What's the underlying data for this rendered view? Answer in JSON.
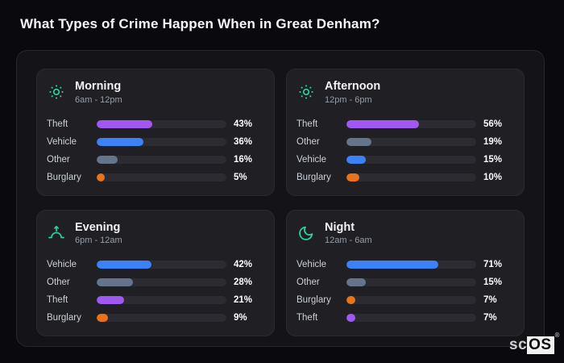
{
  "title": "What Types of Crime Happen When in Great Denham?",
  "logo": {
    "prefix": "sc",
    "boxed": "OS",
    "registered": "®"
  },
  "colors": {
    "page_bg": "#0a0a0e",
    "container_bg": "#131318",
    "panel_bg": "#1f1f24",
    "bar_track": "#2b2b31",
    "accent_teal": "#2dd4a0",
    "crime": {
      "Theft": "#a158f0",
      "Vehicle": "#3b82f6",
      "Other": "#64748b",
      "Burglary": "#e8731a"
    }
  },
  "chart_data": [
    {
      "type": "bar",
      "orientation": "horizontal",
      "title": "Morning",
      "subtitle": "6am - 12pm",
      "icon": "sun-icon",
      "categories": [
        "Theft",
        "Vehicle",
        "Other",
        "Burglary"
      ],
      "values": [
        43,
        36,
        16,
        5
      ],
      "unit": "%",
      "xlim": [
        0,
        100
      ],
      "grid": false,
      "legend": "none"
    },
    {
      "type": "bar",
      "orientation": "horizontal",
      "title": "Afternoon",
      "subtitle": "12pm - 6pm",
      "icon": "sun-icon",
      "categories": [
        "Theft",
        "Other",
        "Vehicle",
        "Burglary"
      ],
      "values": [
        56,
        19,
        15,
        10
      ],
      "unit": "%",
      "xlim": [
        0,
        100
      ],
      "grid": false,
      "legend": "none"
    },
    {
      "type": "bar",
      "orientation": "horizontal",
      "title": "Evening",
      "subtitle": "6pm - 12am",
      "icon": "sunset-icon",
      "categories": [
        "Vehicle",
        "Other",
        "Theft",
        "Burglary"
      ],
      "values": [
        42,
        28,
        21,
        9
      ],
      "unit": "%",
      "xlim": [
        0,
        100
      ],
      "grid": false,
      "legend": "none"
    },
    {
      "type": "bar",
      "orientation": "horizontal",
      "title": "Night",
      "subtitle": "12am - 6am",
      "icon": "moon-icon",
      "categories": [
        "Vehicle",
        "Other",
        "Burglary",
        "Theft"
      ],
      "values": [
        71,
        15,
        7,
        7
      ],
      "unit": "%",
      "xlim": [
        0,
        100
      ],
      "grid": false,
      "legend": "none"
    }
  ]
}
